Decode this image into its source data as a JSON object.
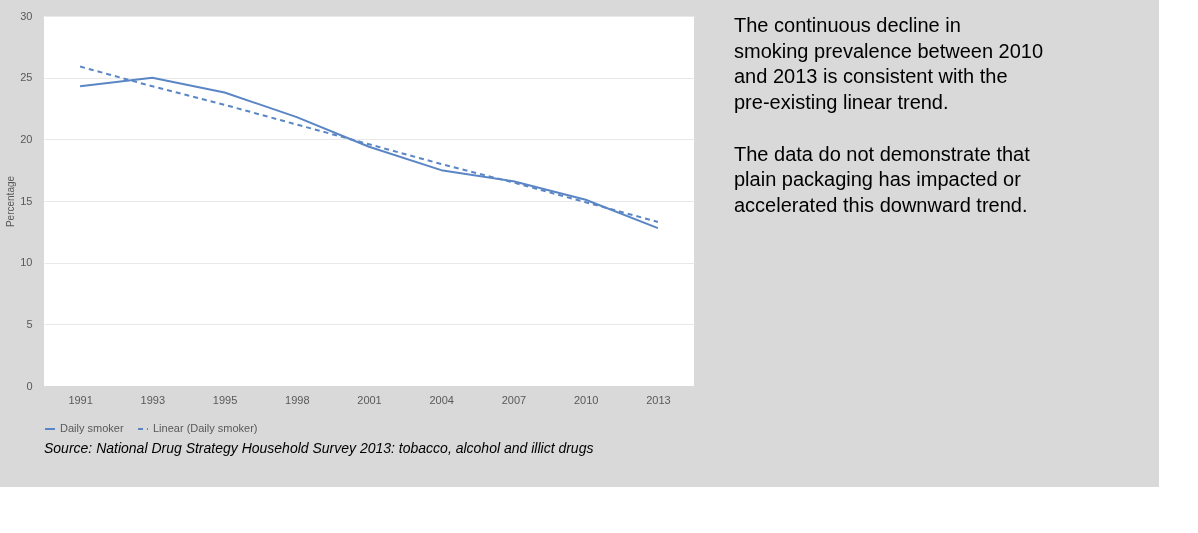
{
  "chart_data": {
    "type": "line",
    "ylabel": "Percentage",
    "categories": [
      "1991",
      "1993",
      "1995",
      "1998",
      "2001",
      "2004",
      "2007",
      "2010",
      "2013"
    ],
    "series": [
      {
        "name": "Daily smoker",
        "color": "#5b86c5",
        "line_style": "solid",
        "values": [
          24.3,
          25.0,
          23.8,
          21.8,
          19.4,
          17.5,
          16.6,
          15.1,
          12.8
        ]
      },
      {
        "name": "Linear (Daily smoker)",
        "color": "#5b86c5",
        "line_style": "dashed",
        "values": [
          25.9,
          24.3,
          22.8,
          21.2,
          19.6,
          18.0,
          16.5,
          14.9,
          13.3
        ]
      }
    ],
    "ylim": [
      0,
      30
    ],
    "yticks": [
      0,
      5,
      10,
      15,
      20,
      25,
      30
    ],
    "grid": "y",
    "legend": "bottom",
    "marker": "none",
    "annotations": [
      "The continuous decline in smoking prevalence between 2010 and 2013 is consistent with the pre-existing linear trend.",
      "The data do not demonstrate that plain packaging has impacted or accelerated this downward trend.",
      "Source: National Drug Strategy Household Survey 2013: tobacco, alcohol and illict drugs"
    ]
  }
}
